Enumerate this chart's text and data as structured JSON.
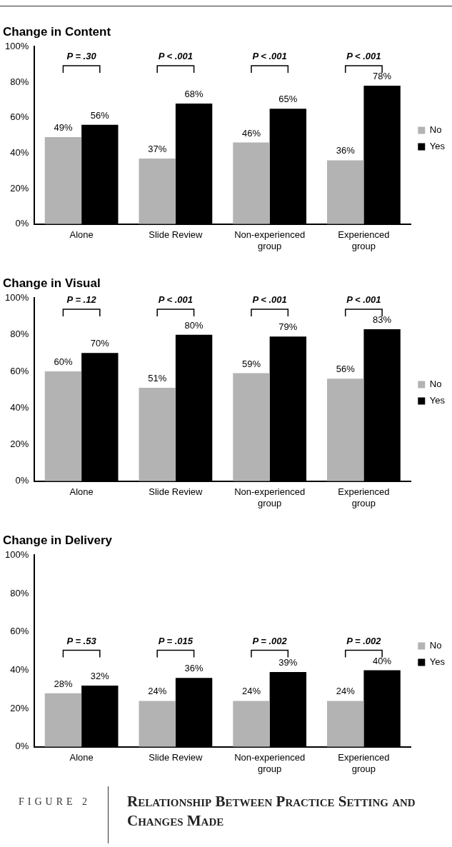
{
  "chart_data": [
    {
      "type": "bar",
      "title": "Change in Content",
      "categories": [
        "Alone",
        "Slide Review",
        "Non-experienced group",
        "Experienced group"
      ],
      "series": [
        {
          "name": "No",
          "color": "#b3b3b3",
          "values": [
            49,
            37,
            46,
            36
          ],
          "value_labels": [
            "49%",
            "37%",
            "46%",
            "36%"
          ]
        },
        {
          "name": "Yes",
          "color": "#000000",
          "values": [
            56,
            68,
            65,
            78
          ],
          "value_labels": [
            "56%",
            "68%",
            "65%",
            "78%"
          ]
        }
      ],
      "ylim": [
        0,
        100
      ],
      "yticks": [
        {
          "value": 0,
          "label": "0%"
        },
        {
          "value": 20,
          "label": "20%"
        },
        {
          "value": 40,
          "label": "40%"
        },
        {
          "value": 60,
          "label": "60%"
        },
        {
          "value": 80,
          "label": "80%"
        },
        {
          "value": 100,
          "label": "100%"
        }
      ],
      "legend": "right",
      "grid": false,
      "annotations": [
        "P = .30",
        "P < .001",
        "P < .001",
        "P < .001"
      ]
    },
    {
      "type": "bar",
      "title": "Change in Visual",
      "categories": [
        "Alone",
        "Slide Review",
        "Non-experienced group",
        "Experienced group"
      ],
      "series": [
        {
          "name": "No",
          "color": "#b3b3b3",
          "values": [
            60,
            51,
            59,
            56
          ],
          "value_labels": [
            "60%",
            "51%",
            "59%",
            "56%"
          ]
        },
        {
          "name": "Yes",
          "color": "#000000",
          "values": [
            70,
            80,
            79,
            83
          ],
          "value_labels": [
            "70%",
            "80%",
            "79%",
            "83%"
          ]
        }
      ],
      "ylim": [
        0,
        100
      ],
      "yticks": [
        {
          "value": 0,
          "label": "0%"
        },
        {
          "value": 20,
          "label": "20%"
        },
        {
          "value": 40,
          "label": "40%"
        },
        {
          "value": 60,
          "label": "60%"
        },
        {
          "value": 80,
          "label": "80%"
        },
        {
          "value": 100,
          "label": "100%"
        }
      ],
      "legend": "right",
      "grid": false,
      "annotations": [
        "P = .12",
        "P < .001",
        "P < .001",
        "P < .001"
      ]
    },
    {
      "type": "bar",
      "title": "Change in Delivery",
      "categories": [
        "Alone",
        "Slide Review",
        "Non-experienced group",
        "Experienced group"
      ],
      "series": [
        {
          "name": "No",
          "color": "#b3b3b3",
          "values": [
            28,
            24,
            24,
            24
          ],
          "value_labels": [
            "28%",
            "24%",
            "24%",
            "24%"
          ]
        },
        {
          "name": "Yes",
          "color": "#000000",
          "values": [
            32,
            36,
            39,
            40
          ],
          "value_labels": [
            "32%",
            "36%",
            "39%",
            "40%"
          ]
        }
      ],
      "ylim": [
        0,
        100
      ],
      "yticks": [
        {
          "value": 0,
          "label": "0%"
        },
        {
          "value": 20,
          "label": "20%"
        },
        {
          "value": 40,
          "label": "40%"
        },
        {
          "value": 60,
          "label": "60%"
        },
        {
          "value": 80,
          "label": "80%"
        },
        {
          "value": 100,
          "label": "100%"
        }
      ],
      "legend": "right",
      "grid": false,
      "annotations": [
        "P = .53",
        "P = .015",
        "P = .002",
        "P = .002"
      ]
    },
    {
      "type": "other",
      "title": "FIGURE 2",
      "subtitle": "Relationship Between Practice Setting and Changes Made"
    }
  ]
}
